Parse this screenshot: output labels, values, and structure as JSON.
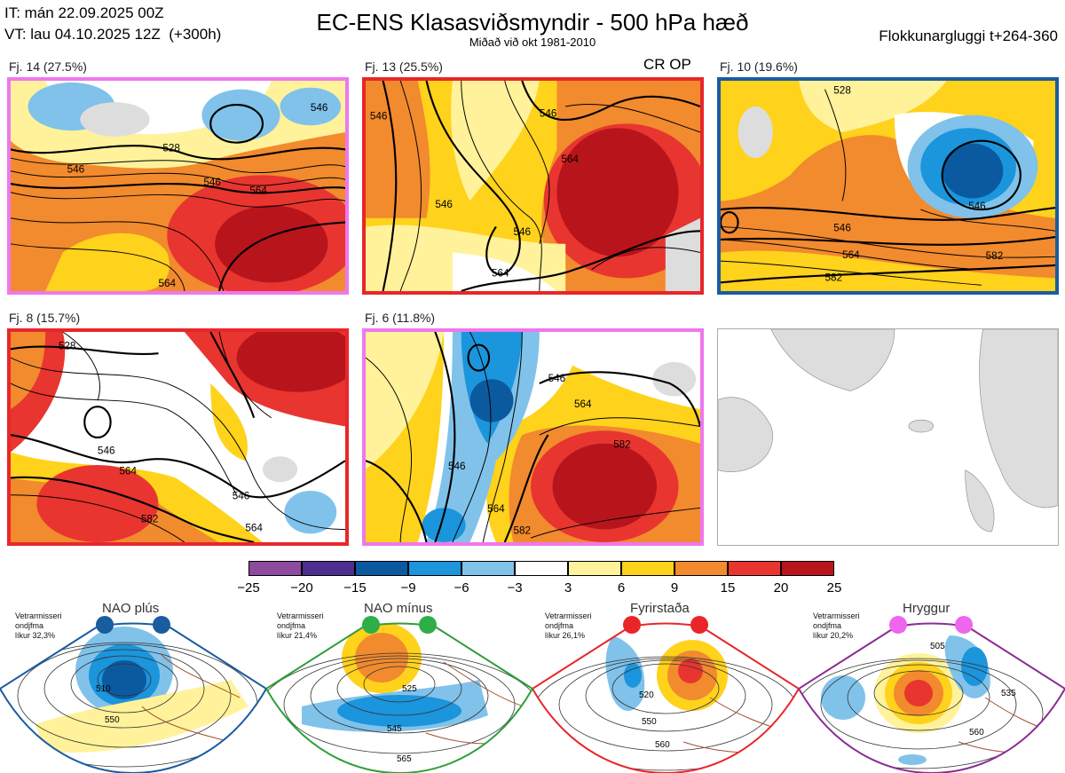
{
  "header": {
    "it_line": "IT: mán 22.09.2025 00Z",
    "vt_line": "VT: lau 04.10.2025 12Z  (+300h)",
    "title": "EC-ENS Klasasviðsmyndir - 500 hPa hæð",
    "subtitle": "Miðað við okt 1981-2010",
    "window": "Flokkunargluggi t+264-360",
    "crop_label": "CR OP"
  },
  "panels": [
    {
      "label": "Fj. 14 (27.5%)",
      "border": "#ee77ee",
      "contours": [
        "528",
        "546",
        "546",
        "564",
        "564",
        "546"
      ]
    },
    {
      "label": "Fj. 13 (25.5%)",
      "border": "#e8262a",
      "contours": [
        "546",
        "546",
        "546",
        "564",
        "564",
        "546"
      ]
    },
    {
      "label": "Fj. 10 (19.6%)",
      "border": "#1a5ca0",
      "contours": [
        "528",
        "546",
        "546",
        "564",
        "582",
        "582"
      ]
    },
    {
      "label": "Fj. 8 (15.7%)",
      "border": "#e8262a",
      "contours": [
        "528",
        "546",
        "564",
        "546",
        "564",
        "582"
      ]
    },
    {
      "label": "Fj. 6 (11.8%)",
      "border": "#ee77ee",
      "contours": [
        "546",
        "564",
        "582",
        "546",
        "564",
        "582"
      ]
    }
  ],
  "colorbar": {
    "ticks": [
      "−25",
      "−20",
      "−15",
      "−9",
      "−6",
      "−3",
      "3",
      "6",
      "9",
      "15",
      "20",
      "25"
    ],
    "colors": [
      "#8e4a9e",
      "#4b2e8e",
      "#0b5aa0",
      "#1b95dc",
      "#80c2ea",
      "#ffffff",
      "#fff29a",
      "#ffd21c",
      "#f28a2e",
      "#e8352f",
      "#b8141b"
    ]
  },
  "regimes": [
    {
      "name": "NAO plús",
      "note": "Vetrarmisseri\nondjfma\nlíkur 32,3%",
      "color": "#1a5ca0",
      "dot": "#1a5ca0",
      "contours": [
        "510",
        "550"
      ]
    },
    {
      "name": "NAO mínus",
      "note": "Vetrarmisseri\nondjfma\nlíkur 21,4%",
      "color": "#2f9e3a",
      "dot": "#2fae47",
      "contours": [
        "525",
        "545",
        "565"
      ]
    },
    {
      "name": "Fyrirstaða",
      "note": "Vetrarmisseri\nondjfma\nlíkur 26,1%",
      "color": "#e8262a",
      "dot": "#e8262a",
      "contours": [
        "520",
        "550",
        "560"
      ]
    },
    {
      "name": "Hryggur",
      "note": "Vetrarmisseri\nondjfma\nlíkur 20,2%",
      "color": "#8b2c95",
      "dot": "#ee66ee",
      "contours": [
        "505",
        "535",
        "560"
      ]
    }
  ]
}
